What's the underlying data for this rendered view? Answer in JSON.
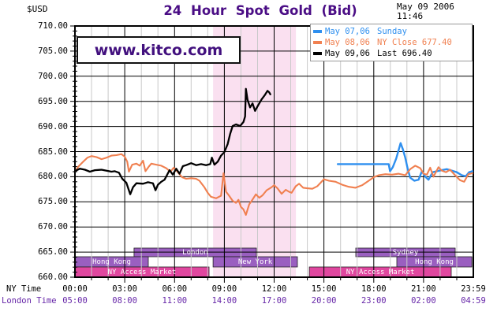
{
  "header": {
    "currency_label": "$USD",
    "title": "24 Hour Spot Gold (Bid)",
    "date": "May 09 2006",
    "time": "11:46"
  },
  "watermark": "www.kitco.com",
  "legend": {
    "items": [
      {
        "date": "May 07,06",
        "label": "Sunday",
        "color": "#2E8FEF"
      },
      {
        "date": "May 08,06",
        "label": "NY Close 677.40",
        "color": "#F08050"
      },
      {
        "date": "May 09,06",
        "label": "Last 696.40",
        "color": "#000000"
      }
    ]
  },
  "bottom_axis": {
    "ny_label": "NY Time",
    "london_label": "London Time",
    "tick_hours": [
      0,
      3,
      6,
      9,
      12,
      15,
      18,
      21,
      24
    ],
    "ny_times": [
      "00:00",
      "03:00",
      "06:00",
      "09:00",
      "12:00",
      "15:00",
      "18:00",
      "21:00",
      "23:59"
    ],
    "london_times": [
      "05:00",
      "08:00",
      "11:00",
      "14:00",
      "17:00",
      "20:00",
      "23:00",
      "02:00",
      "04:59"
    ],
    "london_color": "#6626A8"
  },
  "chart_data": {
    "type": "line",
    "title": "24 Hour Spot Gold (Bid)",
    "ylabel": "$USD",
    "ylim": [
      660,
      710
    ],
    "xlim_hours": [
      0,
      24
    ],
    "grid": {
      "minor_vertical_every_hours": 1,
      "major_vertical_every_hours": 3,
      "major_horizontal_every": 5,
      "minor_color": "#C9C9C9",
      "major_color": "#000000"
    },
    "y_ticks": [
      "710.00",
      "705.00",
      "700.00",
      "695.00",
      "690.00",
      "685.00",
      "680.00",
      "675.00",
      "670.00",
      "665.00",
      "660.00"
    ],
    "highlight_band": {
      "name": "ny-open-session",
      "start_hour": 8.32,
      "end_hour": 13.31,
      "color": "#FAE0F0"
    },
    "sessions": [
      {
        "label": "London",
        "row": 1,
        "start_hour": 3.56,
        "end_hour": 10.93,
        "color": "#9A5FC0"
      },
      {
        "label": "Sydney",
        "row": 1,
        "start_hour": 16.92,
        "end_hour": 22.91,
        "color": "#9A5FC0"
      },
      {
        "label": "Hong Kong",
        "row": 2,
        "start_hour": 0.0,
        "end_hour": 4.42,
        "color": "#9A5FC0"
      },
      {
        "label": "New York",
        "row": 2,
        "start_hour": 8.32,
        "end_hour": 13.4,
        "color": "#9A5FC0"
      },
      {
        "label": "Hong Kong",
        "row": 2,
        "start_hour": 19.39,
        "end_hour": 23.91,
        "color": "#9A5FC0"
      },
      {
        "label": "NY Access Market",
        "row": 3,
        "start_hour": 0.0,
        "end_hour": 8.08,
        "color": "#E0479F"
      },
      {
        "label": "NY Access Market",
        "row": 3,
        "start_hour": 14.12,
        "end_hour": 22.67,
        "color": "#E0479F"
      }
    ],
    "series": [
      {
        "name": "May 07,06 Sunday",
        "color": "#2E8FEF",
        "width": 2.4,
        "points": [
          [
            15.83,
            682.5
          ],
          [
            18.9,
            682.5
          ],
          [
            18.98,
            681.1
          ],
          [
            19.15,
            681.9
          ],
          [
            19.35,
            683.6
          ],
          [
            19.5,
            685.3
          ],
          [
            19.62,
            686.7
          ],
          [
            19.75,
            685.5
          ],
          [
            19.9,
            683.8
          ],
          [
            20.05,
            681.5
          ],
          [
            20.2,
            679.8
          ],
          [
            20.45,
            679.2
          ],
          [
            20.7,
            679.4
          ],
          [
            20.9,
            681.1
          ],
          [
            21.1,
            680.0
          ],
          [
            21.3,
            679.4
          ],
          [
            21.55,
            680.9
          ],
          [
            21.8,
            681.1
          ],
          [
            22.1,
            681.3
          ],
          [
            22.4,
            681.5
          ],
          [
            22.7,
            681.2
          ],
          [
            23.0,
            680.9
          ],
          [
            23.3,
            680.3
          ],
          [
            23.55,
            680.1
          ],
          [
            23.75,
            680.9
          ],
          [
            23.95,
            681.1
          ]
        ]
      },
      {
        "name": "May 08,06 NY Close 677.40",
        "color": "#F08050",
        "width": 2.1,
        "points": [
          [
            0.05,
            681.2
          ],
          [
            0.2,
            682.0
          ],
          [
            0.5,
            683.0
          ],
          [
            0.75,
            683.8
          ],
          [
            1.0,
            684.1
          ],
          [
            1.3,
            683.9
          ],
          [
            1.6,
            683.5
          ],
          [
            1.9,
            683.8
          ],
          [
            2.2,
            684.2
          ],
          [
            2.5,
            684.3
          ],
          [
            2.8,
            684.5
          ],
          [
            3.0,
            684.0
          ],
          [
            3.15,
            683.0
          ],
          [
            3.25,
            681.0
          ],
          [
            3.45,
            682.4
          ],
          [
            3.7,
            682.6
          ],
          [
            3.9,
            682.2
          ],
          [
            4.1,
            683.2
          ],
          [
            4.25,
            681.1
          ],
          [
            4.45,
            682.0
          ],
          [
            4.6,
            682.6
          ],
          [
            4.9,
            682.4
          ],
          [
            5.2,
            682.2
          ],
          [
            5.5,
            681.7
          ],
          [
            5.75,
            681.0
          ],
          [
            5.95,
            681.8
          ],
          [
            6.2,
            680.9
          ],
          [
            6.45,
            679.9
          ],
          [
            6.7,
            679.6
          ],
          [
            7.0,
            679.7
          ],
          [
            7.3,
            679.6
          ],
          [
            7.5,
            679.2
          ],
          [
            7.8,
            677.9
          ],
          [
            8.0,
            676.8
          ],
          [
            8.2,
            676.0
          ],
          [
            8.5,
            675.7
          ],
          [
            8.8,
            676.2
          ],
          [
            8.95,
            680.7
          ],
          [
            9.1,
            677.0
          ],
          [
            9.25,
            676.4
          ],
          [
            9.5,
            675.2
          ],
          [
            9.7,
            674.8
          ],
          [
            9.85,
            675.4
          ],
          [
            10.0,
            674.0
          ],
          [
            10.15,
            673.5
          ],
          [
            10.3,
            672.4
          ],
          [
            10.5,
            674.5
          ],
          [
            10.65,
            675.2
          ],
          [
            10.9,
            676.5
          ],
          [
            11.1,
            675.8
          ],
          [
            11.3,
            676.3
          ],
          [
            11.55,
            677.3
          ],
          [
            11.8,
            677.8
          ],
          [
            12.0,
            678.3
          ],
          [
            12.2,
            677.7
          ],
          [
            12.45,
            676.6
          ],
          [
            12.7,
            677.4
          ],
          [
            12.9,
            677.0
          ],
          [
            13.05,
            676.8
          ],
          [
            13.3,
            678.1
          ],
          [
            13.5,
            678.6
          ],
          [
            13.75,
            677.8
          ],
          [
            14.0,
            677.7
          ],
          [
            14.3,
            677.6
          ],
          [
            14.6,
            678.1
          ],
          [
            15.0,
            679.5
          ],
          [
            15.3,
            679.2
          ],
          [
            15.7,
            679.0
          ],
          [
            16.1,
            678.4
          ],
          [
            16.5,
            678.0
          ],
          [
            16.9,
            677.8
          ],
          [
            17.3,
            678.3
          ],
          [
            17.7,
            679.2
          ],
          [
            18.0,
            679.9
          ],
          [
            18.3,
            680.3
          ],
          [
            18.7,
            680.5
          ],
          [
            19.1,
            680.4
          ],
          [
            19.5,
            680.6
          ],
          [
            19.9,
            680.3
          ],
          [
            20.2,
            681.5
          ],
          [
            20.5,
            682.2
          ],
          [
            20.8,
            681.7
          ],
          [
            21.0,
            680.6
          ],
          [
            21.2,
            680.4
          ],
          [
            21.4,
            681.8
          ],
          [
            21.6,
            680.0
          ],
          [
            21.9,
            681.9
          ],
          [
            22.1,
            681.2
          ],
          [
            22.35,
            680.9
          ],
          [
            22.6,
            681.4
          ],
          [
            22.9,
            680.3
          ],
          [
            23.2,
            679.3
          ],
          [
            23.45,
            679.0
          ],
          [
            23.7,
            680.5
          ],
          [
            23.95,
            680.7
          ]
        ]
      },
      {
        "name": "May 09,06 Last 696.40",
        "color": "#000000",
        "width": 2.3,
        "points": [
          [
            0.05,
            681.2
          ],
          [
            0.3,
            681.6
          ],
          [
            0.6,
            681.4
          ],
          [
            0.9,
            681.0
          ],
          [
            1.2,
            681.3
          ],
          [
            1.6,
            681.4
          ],
          [
            1.9,
            681.2
          ],
          [
            2.2,
            681.0
          ],
          [
            2.4,
            681.1
          ],
          [
            2.65,
            680.8
          ],
          [
            2.85,
            679.6
          ],
          [
            3.1,
            678.8
          ],
          [
            3.33,
            676.5
          ],
          [
            3.5,
            677.9
          ],
          [
            3.7,
            678.7
          ],
          [
            4.1,
            678.6
          ],
          [
            4.4,
            678.9
          ],
          [
            4.7,
            678.7
          ],
          [
            4.85,
            677.3
          ],
          [
            5.0,
            678.4
          ],
          [
            5.2,
            679.0
          ],
          [
            5.4,
            679.4
          ],
          [
            5.7,
            681.3
          ],
          [
            5.9,
            680.4
          ],
          [
            6.1,
            681.6
          ],
          [
            6.3,
            680.6
          ],
          [
            6.5,
            682.1
          ],
          [
            6.7,
            682.3
          ],
          [
            7.0,
            682.7
          ],
          [
            7.3,
            682.3
          ],
          [
            7.6,
            682.5
          ],
          [
            7.9,
            682.3
          ],
          [
            8.15,
            682.5
          ],
          [
            8.25,
            683.8
          ],
          [
            8.4,
            682.4
          ],
          [
            8.6,
            683.0
          ],
          [
            8.8,
            684.2
          ],
          [
            9.0,
            684.9
          ],
          [
            9.2,
            686.5
          ],
          [
            9.35,
            688.5
          ],
          [
            9.5,
            690.1
          ],
          [
            9.7,
            690.4
          ],
          [
            9.95,
            690.1
          ],
          [
            10.15,
            690.9
          ],
          [
            10.25,
            692.0
          ],
          [
            10.3,
            697.5
          ],
          [
            10.4,
            695.3
          ],
          [
            10.55,
            693.8
          ],
          [
            10.7,
            694.6
          ],
          [
            10.85,
            693.1
          ],
          [
            11.05,
            694.3
          ],
          [
            11.25,
            695.4
          ],
          [
            11.45,
            696.3
          ],
          [
            11.6,
            697.1
          ],
          [
            11.7,
            696.8
          ],
          [
            11.77,
            696.4
          ]
        ]
      }
    ],
    "legend_position": "top-right",
    "last_price": "696.40",
    "prev_close": "677.40"
  }
}
